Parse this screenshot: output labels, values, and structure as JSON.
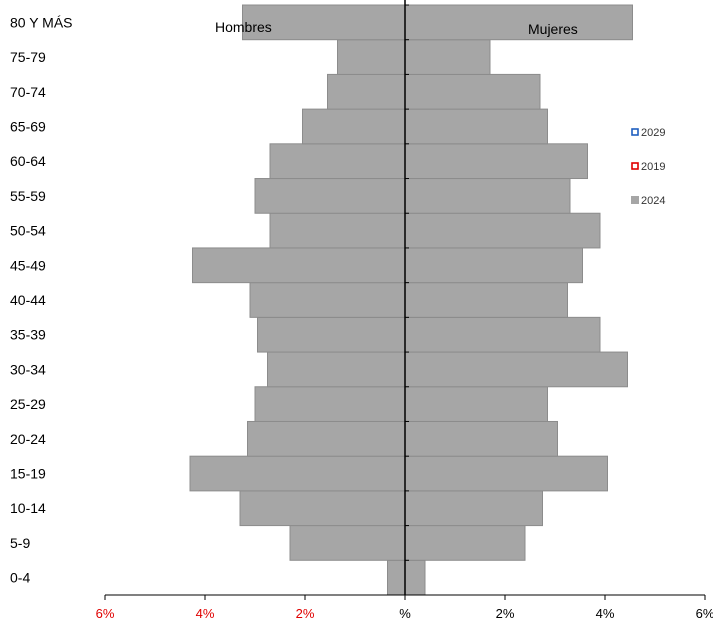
{
  "chart_data": {
    "type": "bar",
    "orientation": "horizontal-population-pyramid",
    "categories": [
      "0-4",
      "5-9",
      "10-14",
      "15-19",
      "20-24",
      "25-29",
      "30-34",
      "35-39",
      "40-44",
      "45-49",
      "50-54",
      "55-59",
      "60-64",
      "65-69",
      "70-74",
      "75-79",
      "80 Y MÁS"
    ],
    "series": [
      {
        "name": "Hombres",
        "values": [
          0.35,
          2.3,
          3.3,
          4.3,
          3.15,
          3.0,
          2.75,
          2.95,
          3.1,
          4.25,
          2.7,
          3.0,
          2.7,
          2.05,
          1.55,
          1.35,
          3.25
        ]
      },
      {
        "name": "Mujeres",
        "values": [
          0.4,
          2.4,
          2.75,
          4.05,
          3.05,
          2.85,
          4.45,
          3.9,
          3.25,
          3.55,
          3.9,
          3.3,
          3.65,
          2.85,
          2.7,
          1.7,
          4.55
        ]
      }
    ],
    "side_labels": {
      "left": "Hombres",
      "right": "Mujeres"
    },
    "xticks": [
      "6%",
      "4%",
      "2%",
      "%",
      "2%",
      "4%",
      "6%"
    ],
    "xlim": [
      -6,
      6
    ],
    "legend": [
      {
        "label": "2029",
        "color": "#1f5fbf",
        "style": "hollow-square"
      },
      {
        "label": "2019",
        "color": "#e00000",
        "style": "hollow-square"
      },
      {
        "label": "2024",
        "color": "#a6a6a6",
        "style": "filled-square"
      }
    ],
    "legend_position": "right",
    "colors": {
      "bar_fill": "#a6a6a6",
      "bar_stroke": "#8c8c8c",
      "axis": "#000000",
      "tick_label_left": "#e00000",
      "tick_label_right": "#000000"
    }
  }
}
